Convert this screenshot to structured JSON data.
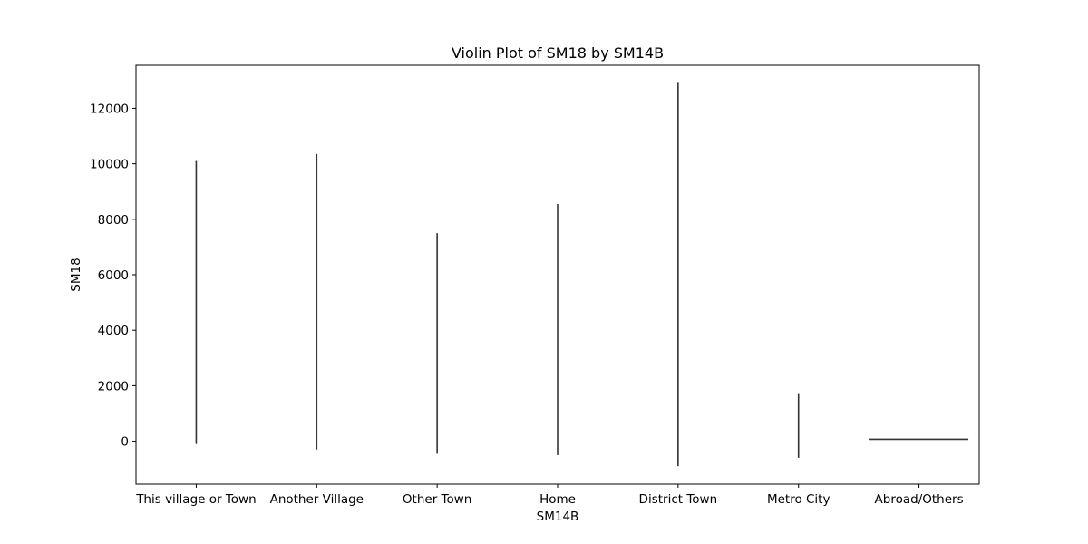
{
  "chart_data": {
    "type": "violin",
    "title": "Violin Plot of SM18 by SM14B",
    "xlabel": "SM14B",
    "ylabel": "SM18",
    "categories": [
      "This village or Town",
      "Another Village",
      "Other Town",
      "Home",
      "District Town",
      "Metro City",
      "Abroad/Others"
    ],
    "ranges": [
      {
        "min": -100,
        "max": 10100
      },
      {
        "min": -300,
        "max": 10350
      },
      {
        "min": -450,
        "max": 7500
      },
      {
        "min": -500,
        "max": 8550
      },
      {
        "min": -900,
        "max": 12950
      },
      {
        "min": -600,
        "max": 1700
      },
      {
        "min": 70,
        "max": 70
      }
    ],
    "ylim": [
      -1550,
      13550
    ],
    "yticks": [
      0,
      2000,
      4000,
      6000,
      8000,
      10000,
      12000
    ],
    "grid": false,
    "colors": {
      "line": "#333333",
      "axis": "#000000"
    }
  }
}
